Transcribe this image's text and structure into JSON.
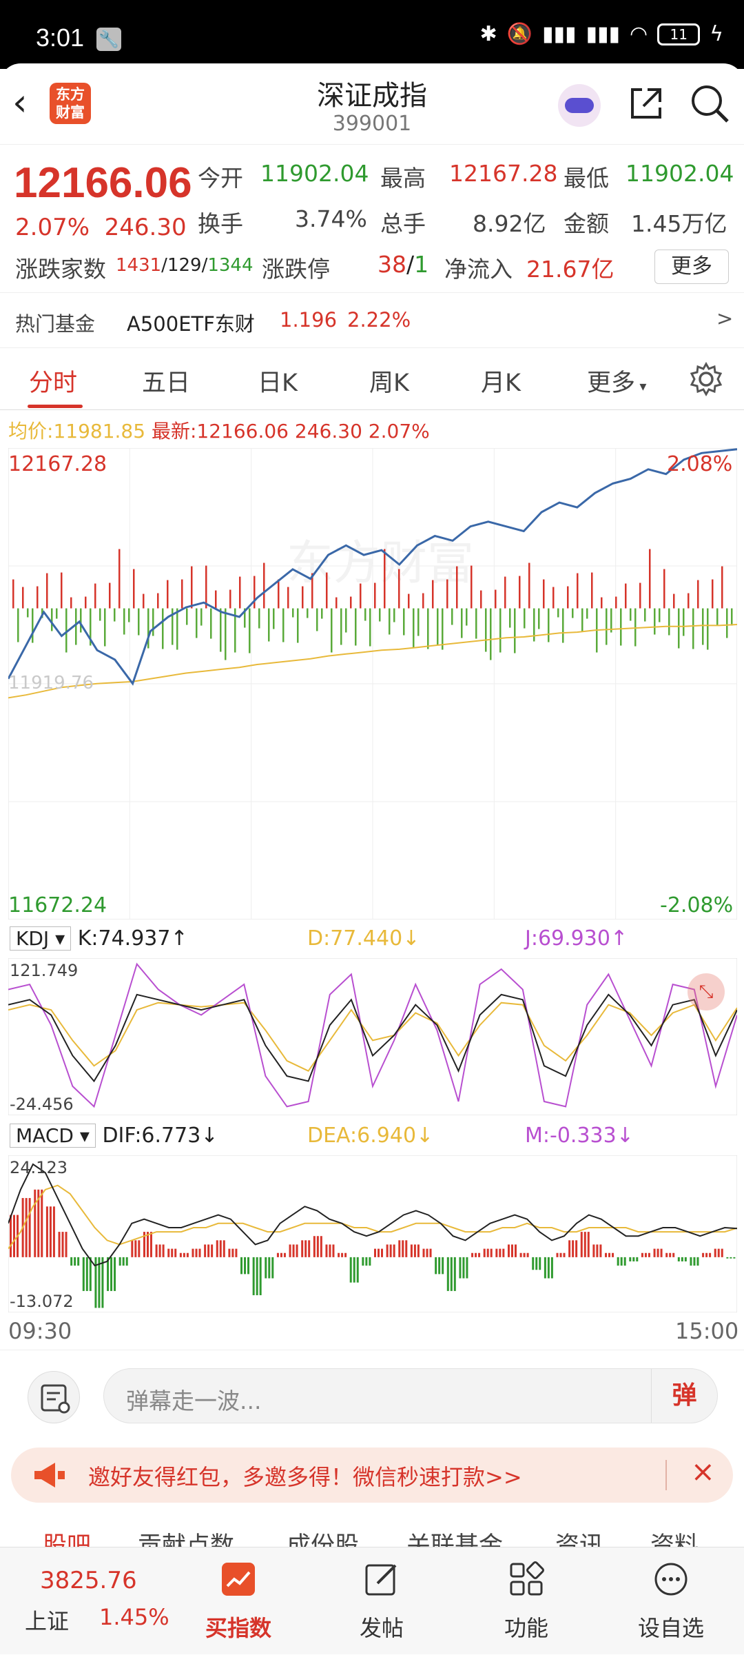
{
  "status_bar": {
    "time": "3:01",
    "battery": "11"
  },
  "header": {
    "title": "深证成指",
    "code": "399001",
    "logo_line1": "东方",
    "logo_line2": "财富"
  },
  "quote": {
    "price": "12166.06",
    "change_pct": "2.07%",
    "change_abs": "246.30",
    "rows": [
      [
        {
          "label": "今开",
          "value": "11902.04",
          "color": "green"
        },
        {
          "label": "最高",
          "value": "12167.28",
          "color": "red"
        },
        {
          "label": "最低",
          "value": "11902.04",
          "color": "green"
        }
      ],
      [
        {
          "label": "换手",
          "value": "3.74%",
          "color": "gray"
        },
        {
          "label": "总手",
          "value": "8.92亿",
          "color": "gray"
        },
        {
          "label": "金额",
          "value": "1.45万亿",
          "color": "gray"
        }
      ]
    ],
    "breadth_label": "涨跌家数",
    "breadth_up": "1431",
    "breadth_flat": "129",
    "breadth_down": "1344",
    "limit_label": "涨跌停",
    "limit_up": "38",
    "limit_down": "1",
    "netflow_label": "净流入",
    "netflow_value": "21.67亿",
    "more_button": "更多"
  },
  "hot_fund": {
    "label": "热门基金",
    "name": "A500ETF东财",
    "price": "1.196",
    "change": "2.22%",
    "arrow": ">"
  },
  "tabs": [
    "分时",
    "五日",
    "日K",
    "周K",
    "月K",
    "更多"
  ],
  "info_line": {
    "avg_label": "均价:",
    "avg_value": "11981.85",
    "latest_label": "最新:",
    "latest_value": "12166.06",
    "latest_change": "246.30",
    "latest_pct": "2.07%"
  },
  "chart_data": [
    {
      "type": "line",
      "y_top_label": "12167.28",
      "y_bottom_label": "11672.24",
      "y_mid_label": "11919.76",
      "pct_top": "2.08%",
      "pct_bottom": "-2.08%",
      "ylim": [
        11672.24,
        12167.28
      ],
      "watermark": "东方财富",
      "x_start": "09:30",
      "x_end": "15:00",
      "series": [
        {
          "values": [
            11925,
            11960,
            11995,
            11970,
            11985,
            11955,
            11945,
            11920,
            11975,
            11990,
            12000,
            12005,
            11995,
            11990,
            12010,
            12025,
            12040,
            12030,
            12055,
            12065,
            12055,
            12060,
            12045,
            12065,
            12075,
            12070,
            12085,
            12090,
            12085,
            12080,
            12100,
            12110,
            12105,
            12120,
            12130,
            12135,
            12145,
            12140,
            12155,
            12162,
            12164,
            12166
          ]
        },
        {
          "values": [
            11905,
            11908,
            11912,
            11916,
            11918,
            11920,
            11921,
            11922,
            11925,
            11928,
            11931,
            11933,
            11935,
            11937,
            11940,
            11942,
            11944,
            11946,
            11949,
            11951,
            11953,
            11955,
            11956,
            11958,
            11960,
            11962,
            11964,
            11966,
            11968,
            11969,
            11971,
            11973,
            11974,
            11976,
            11977,
            11978,
            11979,
            11980,
            11980,
            11981,
            11981,
            11982
          ]
        }
      ]
    },
    {
      "type": "line",
      "title": "KDJ",
      "k_label": "K:74.937",
      "d_label": "D:77.440",
      "j_label": "J:69.930",
      "y_top_label": "121.749",
      "y_bottom_label": "-24.456",
      "ylim": [
        -24.456,
        121.749
      ],
      "series": [
        {
          "values": [
            80,
            85,
            70,
            30,
            5,
            40,
            90,
            85,
            80,
            75,
            80,
            85,
            40,
            10,
            5,
            60,
            85,
            30,
            50,
            80,
            60,
            15,
            70,
            90,
            85,
            20,
            10,
            60,
            90,
            70,
            40,
            80,
            85,
            30,
            75
          ]
        },
        {
          "values": [
            75,
            80,
            75,
            45,
            20,
            35,
            75,
            82,
            80,
            78,
            80,
            82,
            55,
            25,
            15,
            45,
            75,
            45,
            50,
            72,
            62,
            30,
            60,
            82,
            80,
            40,
            25,
            50,
            80,
            72,
            50,
            72,
            80,
            45,
            77
          ]
        },
        {
          "values": [
            95,
            100,
            60,
            0,
            -20,
            50,
            120,
            95,
            80,
            70,
            85,
            100,
            10,
            -20,
            -15,
            90,
            110,
            0,
            45,
            100,
            55,
            -15,
            100,
            115,
            95,
            -15,
            -20,
            80,
            110,
            65,
            20,
            100,
            95,
            0,
            70
          ]
        }
      ]
    },
    {
      "type": "bar",
      "title": "MACD",
      "dif_label": "DIF:6.773",
      "dea_label": "DEA:6.940",
      "m_label": "M:-0.333",
      "y_top_label": "24.123",
      "y_bottom_label": "-13.072",
      "ylim": [
        -13.072,
        24.123
      ],
      "m_values": [
        10,
        14,
        16,
        12,
        6,
        -2,
        -8,
        -12,
        -8,
        -2,
        4,
        6,
        3,
        2,
        1,
        2,
        3,
        4,
        2,
        -4,
        -9,
        -5,
        1,
        3,
        4,
        5,
        3,
        1,
        -6,
        -2,
        2,
        3,
        4,
        3,
        2,
        -4,
        -8,
        -5,
        1,
        2,
        2,
        3,
        1,
        -3,
        -5,
        1,
        4,
        6,
        3,
        1,
        -2,
        -1,
        1,
        2,
        1,
        -1,
        -2,
        1,
        2,
        -0.3
      ],
      "dif_values": [
        8,
        16,
        22,
        20,
        14,
        8,
        2,
        -2,
        -1,
        3,
        8,
        9,
        8,
        7,
        7,
        8,
        9,
        10,
        9,
        6,
        3,
        4,
        8,
        10,
        12,
        11,
        9,
        8,
        6,
        5,
        6,
        8,
        10,
        11,
        10,
        8,
        5,
        4,
        6,
        8,
        9,
        10,
        9,
        6,
        4,
        5,
        8,
        10,
        9,
        7,
        5,
        5,
        6,
        7,
        7,
        6,
        5,
        6,
        7,
        6.8
      ],
      "dea_values": [
        2,
        6,
        12,
        16,
        17,
        15,
        11,
        7,
        4,
        3,
        4,
        5,
        6,
        6,
        6,
        7,
        7,
        8,
        8,
        8,
        7,
        6,
        6,
        7,
        8,
        8,
        8,
        8,
        7,
        7,
        6,
        6,
        7,
        8,
        8,
        8,
        7,
        6,
        6,
        6,
        7,
        7,
        8,
        7,
        7,
        6,
        6,
        7,
        7,
        7,
        7,
        6,
        6,
        6,
        6,
        6,
        6,
        6,
        6,
        6.9
      ]
    }
  ],
  "barrage": {
    "placeholder": "弹幕走一波...",
    "button": "弹"
  },
  "promo": {
    "text": "邀好友得红包，多邀多得！微信秒速打款>>",
    "close": "×"
  },
  "sub_tabs": [
    "股吧",
    "贡献点数",
    "成份股",
    "关联基金",
    "资讯",
    "资料"
  ],
  "bottom_nav": {
    "index_value": "3825.76",
    "index_name": "上证",
    "index_pct": "1.45%",
    "items": [
      {
        "label": "买指数"
      },
      {
        "label": "发帖"
      },
      {
        "label": "功能"
      },
      {
        "label": "设自选"
      }
    ]
  },
  "colors": {
    "up": "#d6342a",
    "down": "#2f9a2f",
    "price_line": "#3a68a8",
    "avg_line": "#e8b93a",
    "j_line": "#b84fd0"
  }
}
